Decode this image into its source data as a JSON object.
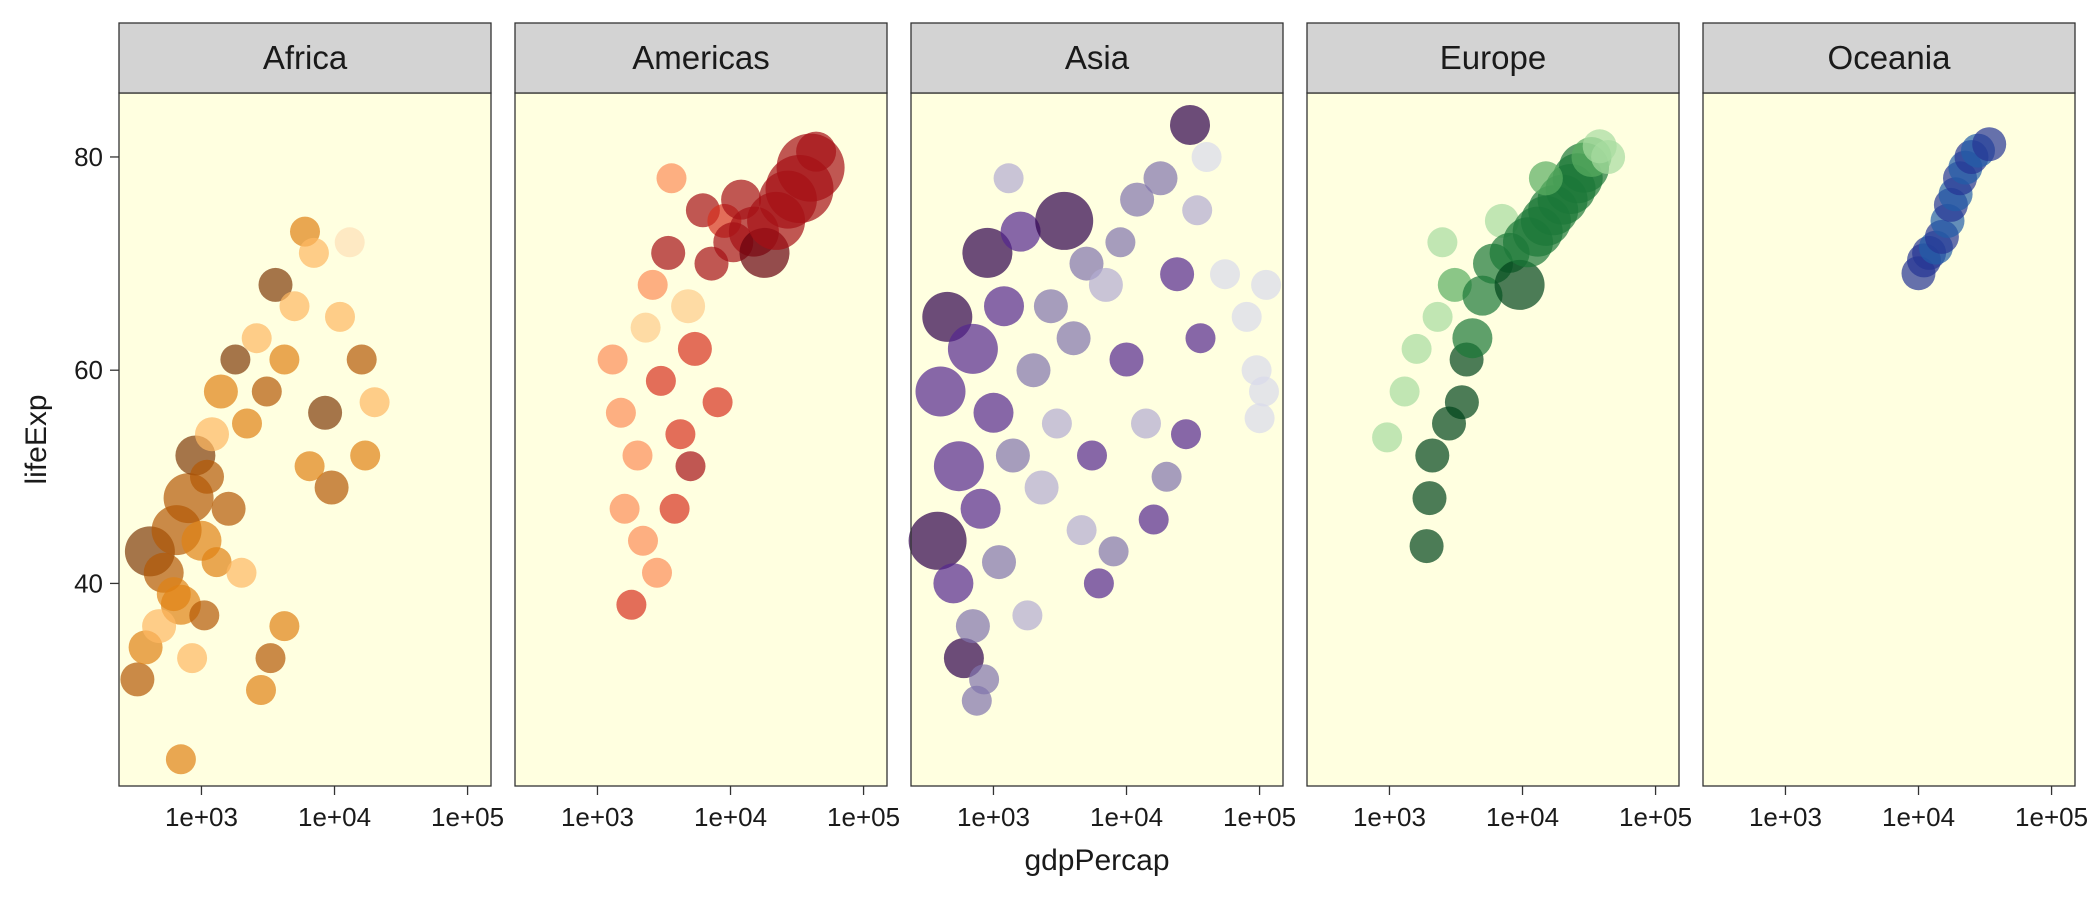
{
  "chart_data": {
    "type": "scatter",
    "layout": "faceted",
    "xlabel": "gdpPercap",
    "ylabel": "lifeExp",
    "x_scale": "log10",
    "xlim": [
      240,
      150000
    ],
    "ylim": [
      21,
      86
    ],
    "x_ticks": [
      1000,
      10000,
      100000
    ],
    "x_tick_labels": [
      "1e+03",
      "1e+04",
      "1e+05"
    ],
    "y_ticks": [
      40,
      60,
      80
    ],
    "y_tick_labels": [
      "40",
      "60",
      "80"
    ],
    "panel_background": "#ffffe0",
    "strip_background": "#d3d3d3",
    "point_opacity": 0.7,
    "legend": "none",
    "facets": [
      {
        "name": "Africa",
        "colors": [
          "#7f3b08",
          "#b35806",
          "#e08214",
          "#fdb863",
          "#fee0b6"
        ],
        "points": [
          [
            410,
            43,
            5,
            0
          ],
          [
            520,
            41,
            4,
            1
          ],
          [
            650,
            45,
            5,
            1
          ],
          [
            700,
            38,
            4,
            2
          ],
          [
            800,
            48,
            5,
            1
          ],
          [
            900,
            52,
            4,
            0
          ],
          [
            1000,
            44,
            4,
            2
          ],
          [
            1100,
            50,
            3,
            1
          ],
          [
            1200,
            54,
            3,
            3
          ],
          [
            1400,
            58,
            3,
            2
          ],
          [
            1600,
            47,
            3,
            1
          ],
          [
            1800,
            61,
            2,
            0
          ],
          [
            2200,
            55,
            2,
            2
          ],
          [
            2600,
            63,
            2,
            3
          ],
          [
            3100,
            58,
            2,
            1
          ],
          [
            3600,
            68,
            3,
            0
          ],
          [
            4200,
            61,
            2,
            2
          ],
          [
            5000,
            66,
            2,
            3
          ],
          [
            6000,
            73,
            2,
            2
          ],
          [
            7000,
            71,
            2,
            3
          ],
          [
            8500,
            56,
            3,
            0
          ],
          [
            9500,
            49,
            3,
            1
          ],
          [
            11000,
            65,
            2,
            3
          ],
          [
            13000,
            72,
            2,
            4
          ],
          [
            17000,
            52,
            2,
            2
          ],
          [
            20000,
            57,
            2,
            3
          ],
          [
            330,
            31,
            3,
            1
          ],
          [
            380,
            34,
            3,
            2
          ],
          [
            480,
            36,
            3,
            3
          ],
          [
            620,
            39,
            3,
            2
          ],
          [
            700,
            23.5,
            2,
            2
          ],
          [
            850,
            33,
            2,
            3
          ],
          [
            1050,
            37,
            2,
            1
          ],
          [
            1300,
            42,
            2,
            2
          ],
          [
            2000,
            41,
            2,
            3
          ],
          [
            2800,
            30,
            2,
            2
          ],
          [
            3300,
            33,
            2,
            1
          ],
          [
            4200,
            36,
            2,
            2
          ],
          [
            6500,
            51,
            2,
            2
          ],
          [
            16000,
            61,
            2,
            1
          ]
        ]
      },
      {
        "name": "Americas",
        "colors": [
          "#67000d",
          "#a50f15",
          "#d7301f",
          "#fc8d59",
          "#fdcc8a"
        ],
        "points": [
          [
            1300,
            61,
            2,
            3
          ],
          [
            1500,
            56,
            2,
            3
          ],
          [
            1600,
            47,
            2,
            3
          ],
          [
            1800,
            38,
            2,
            2
          ],
          [
            2000,
            52,
            2,
            3
          ],
          [
            2300,
            64,
            2,
            4
          ],
          [
            2600,
            68,
            2,
            3
          ],
          [
            3000,
            59,
            2,
            2
          ],
          [
            3400,
            71,
            3,
            1
          ],
          [
            3800,
            47,
            2,
            2
          ],
          [
            4200,
            54,
            2,
            2
          ],
          [
            4800,
            66,
            3,
            4
          ],
          [
            5400,
            62,
            3,
            2
          ],
          [
            6200,
            75,
            3,
            1
          ],
          [
            7200,
            70,
            3,
            1
          ],
          [
            8000,
            57,
            2,
            2
          ],
          [
            9000,
            74,
            3,
            2
          ],
          [
            10500,
            72,
            4,
            1
          ],
          [
            12000,
            76,
            4,
            1
          ],
          [
            15000,
            73,
            5,
            1
          ],
          [
            18000,
            71,
            5,
            0
          ],
          [
            22000,
            74,
            6,
            1
          ],
          [
            27000,
            76,
            6,
            1
          ],
          [
            33000,
            77,
            7,
            1
          ],
          [
            40000,
            79,
            7,
            1
          ],
          [
            44000,
            80.5,
            4,
            1
          ],
          [
            5000,
            51,
            2,
            1
          ],
          [
            2200,
            44,
            2,
            3
          ],
          [
            3600,
            78,
            2,
            3
          ],
          [
            2800,
            41,
            2,
            3
          ]
        ]
      },
      {
        "name": "Asia",
        "colors": [
          "#2d004b",
          "#54278f",
          "#8073ac",
          "#b2abd2",
          "#d8daeb"
        ],
        "points": [
          [
            380,
            44,
            6,
            0
          ],
          [
            400,
            58,
            5,
            1
          ],
          [
            450,
            65,
            5,
            0
          ],
          [
            500,
            40,
            4,
            1
          ],
          [
            550,
            51,
            5,
            1
          ],
          [
            600,
            33,
            4,
            0
          ],
          [
            700,
            62,
            5,
            1
          ],
          [
            750,
            29,
            2,
            2
          ],
          [
            800,
            47,
            4,
            1
          ],
          [
            900,
            71,
            5,
            0
          ],
          [
            1000,
            56,
            4,
            1
          ],
          [
            1100,
            42,
            3,
            2
          ],
          [
            1200,
            66,
            4,
            1
          ],
          [
            1400,
            52,
            3,
            2
          ],
          [
            1600,
            73,
            4,
            1
          ],
          [
            1800,
            37,
            2,
            3
          ],
          [
            2000,
            60,
            3,
            2
          ],
          [
            2300,
            49,
            3,
            3
          ],
          [
            2700,
            66,
            3,
            2
          ],
          [
            3000,
            55,
            2,
            3
          ],
          [
            3400,
            74,
            6,
            0
          ],
          [
            4000,
            63,
            3,
            2
          ],
          [
            4600,
            45,
            2,
            3
          ],
          [
            5000,
            70,
            3,
            2
          ],
          [
            5500,
            52,
            2,
            1
          ],
          [
            6200,
            40,
            2,
            1
          ],
          [
            7000,
            68,
            3,
            3
          ],
          [
            8000,
            43,
            2,
            2
          ],
          [
            9000,
            72,
            2,
            2
          ],
          [
            10000,
            61,
            3,
            1
          ],
          [
            12000,
            76,
            3,
            2
          ],
          [
            14000,
            55,
            2,
            3
          ],
          [
            16000,
            46,
            2,
            1
          ],
          [
            18000,
            78,
            3,
            2
          ],
          [
            20000,
            50,
            2,
            2
          ],
          [
            24000,
            69,
            3,
            1
          ],
          [
            28000,
            54,
            2,
            1
          ],
          [
            30000,
            83,
            4,
            0
          ],
          [
            34000,
            75,
            2,
            3
          ],
          [
            36000,
            63,
            2,
            1
          ],
          [
            40000,
            80,
            2,
            4
          ],
          [
            55000,
            69,
            2,
            4
          ],
          [
            80000,
            65,
            2,
            4
          ],
          [
            95000,
            60,
            2,
            4
          ],
          [
            108000,
            58,
            2,
            4
          ],
          [
            112000,
            68,
            2,
            4
          ],
          [
            100000,
            55.5,
            2,
            4
          ],
          [
            700,
            36,
            3,
            2
          ],
          [
            850,
            31,
            2,
            2
          ],
          [
            1300,
            78,
            2,
            3
          ]
        ]
      },
      {
        "name": "Europe",
        "colors": [
          "#00441b",
          "#1b7837",
          "#5aae61",
          "#a6dba0",
          "#d9f0d3"
        ],
        "points": [
          [
            960,
            53.7,
            2,
            3
          ],
          [
            1300,
            58,
            2,
            3
          ],
          [
            1600,
            62,
            2,
            3
          ],
          [
            1900,
            43.5,
            3,
            0
          ],
          [
            2000,
            48,
            3,
            0
          ],
          [
            2100,
            52,
            3,
            0
          ],
          [
            2300,
            65,
            2,
            3
          ],
          [
            2500,
            72,
            2,
            3
          ],
          [
            2800,
            55,
            3,
            0
          ],
          [
            3100,
            68,
            3,
            2
          ],
          [
            3500,
            57,
            3,
            0
          ],
          [
            3800,
            61,
            3,
            0
          ],
          [
            4200,
            63,
            4,
            1
          ],
          [
            5000,
            67,
            4,
            1
          ],
          [
            6000,
            70,
            4,
            1
          ],
          [
            7000,
            74,
            3,
            3
          ],
          [
            8000,
            71,
            4,
            1
          ],
          [
            9500,
            68,
            5,
            0
          ],
          [
            11000,
            72,
            5,
            1
          ],
          [
            13000,
            73,
            5,
            1
          ],
          [
            15000,
            74,
            5,
            1
          ],
          [
            17000,
            75,
            5,
            1
          ],
          [
            20000,
            76,
            5,
            1
          ],
          [
            23000,
            77,
            5,
            1
          ],
          [
            26000,
            78,
            5,
            1
          ],
          [
            29000,
            79,
            5,
            1
          ],
          [
            33000,
            80,
            4,
            2
          ],
          [
            38000,
            81,
            3,
            3
          ],
          [
            44000,
            80,
            3,
            3
          ],
          [
            15000,
            78,
            3,
            2
          ]
        ]
      },
      {
        "name": "Oceania",
        "colors": [
          "#081d58",
          "#253494",
          "#225ea8",
          "#1d91c0",
          "#41b6c4"
        ],
        "points": [
          [
            10000,
            69.1,
            3,
            1
          ],
          [
            11000,
            70.3,
            3,
            1
          ],
          [
            12000,
            71,
            3,
            1
          ],
          [
            13500,
            71.5,
            3,
            2
          ],
          [
            15000,
            72.5,
            3,
            1
          ],
          [
            16500,
            74,
            3,
            2
          ],
          [
            17500,
            75.5,
            3,
            1
          ],
          [
            19000,
            76.5,
            3,
            2
          ],
          [
            20500,
            78,
            3,
            1
          ],
          [
            22500,
            79,
            3,
            2
          ],
          [
            25000,
            80,
            3,
            1
          ],
          [
            28000,
            80.6,
            3,
            2
          ],
          [
            34000,
            81.2,
            3,
            1
          ]
        ]
      }
    ]
  }
}
